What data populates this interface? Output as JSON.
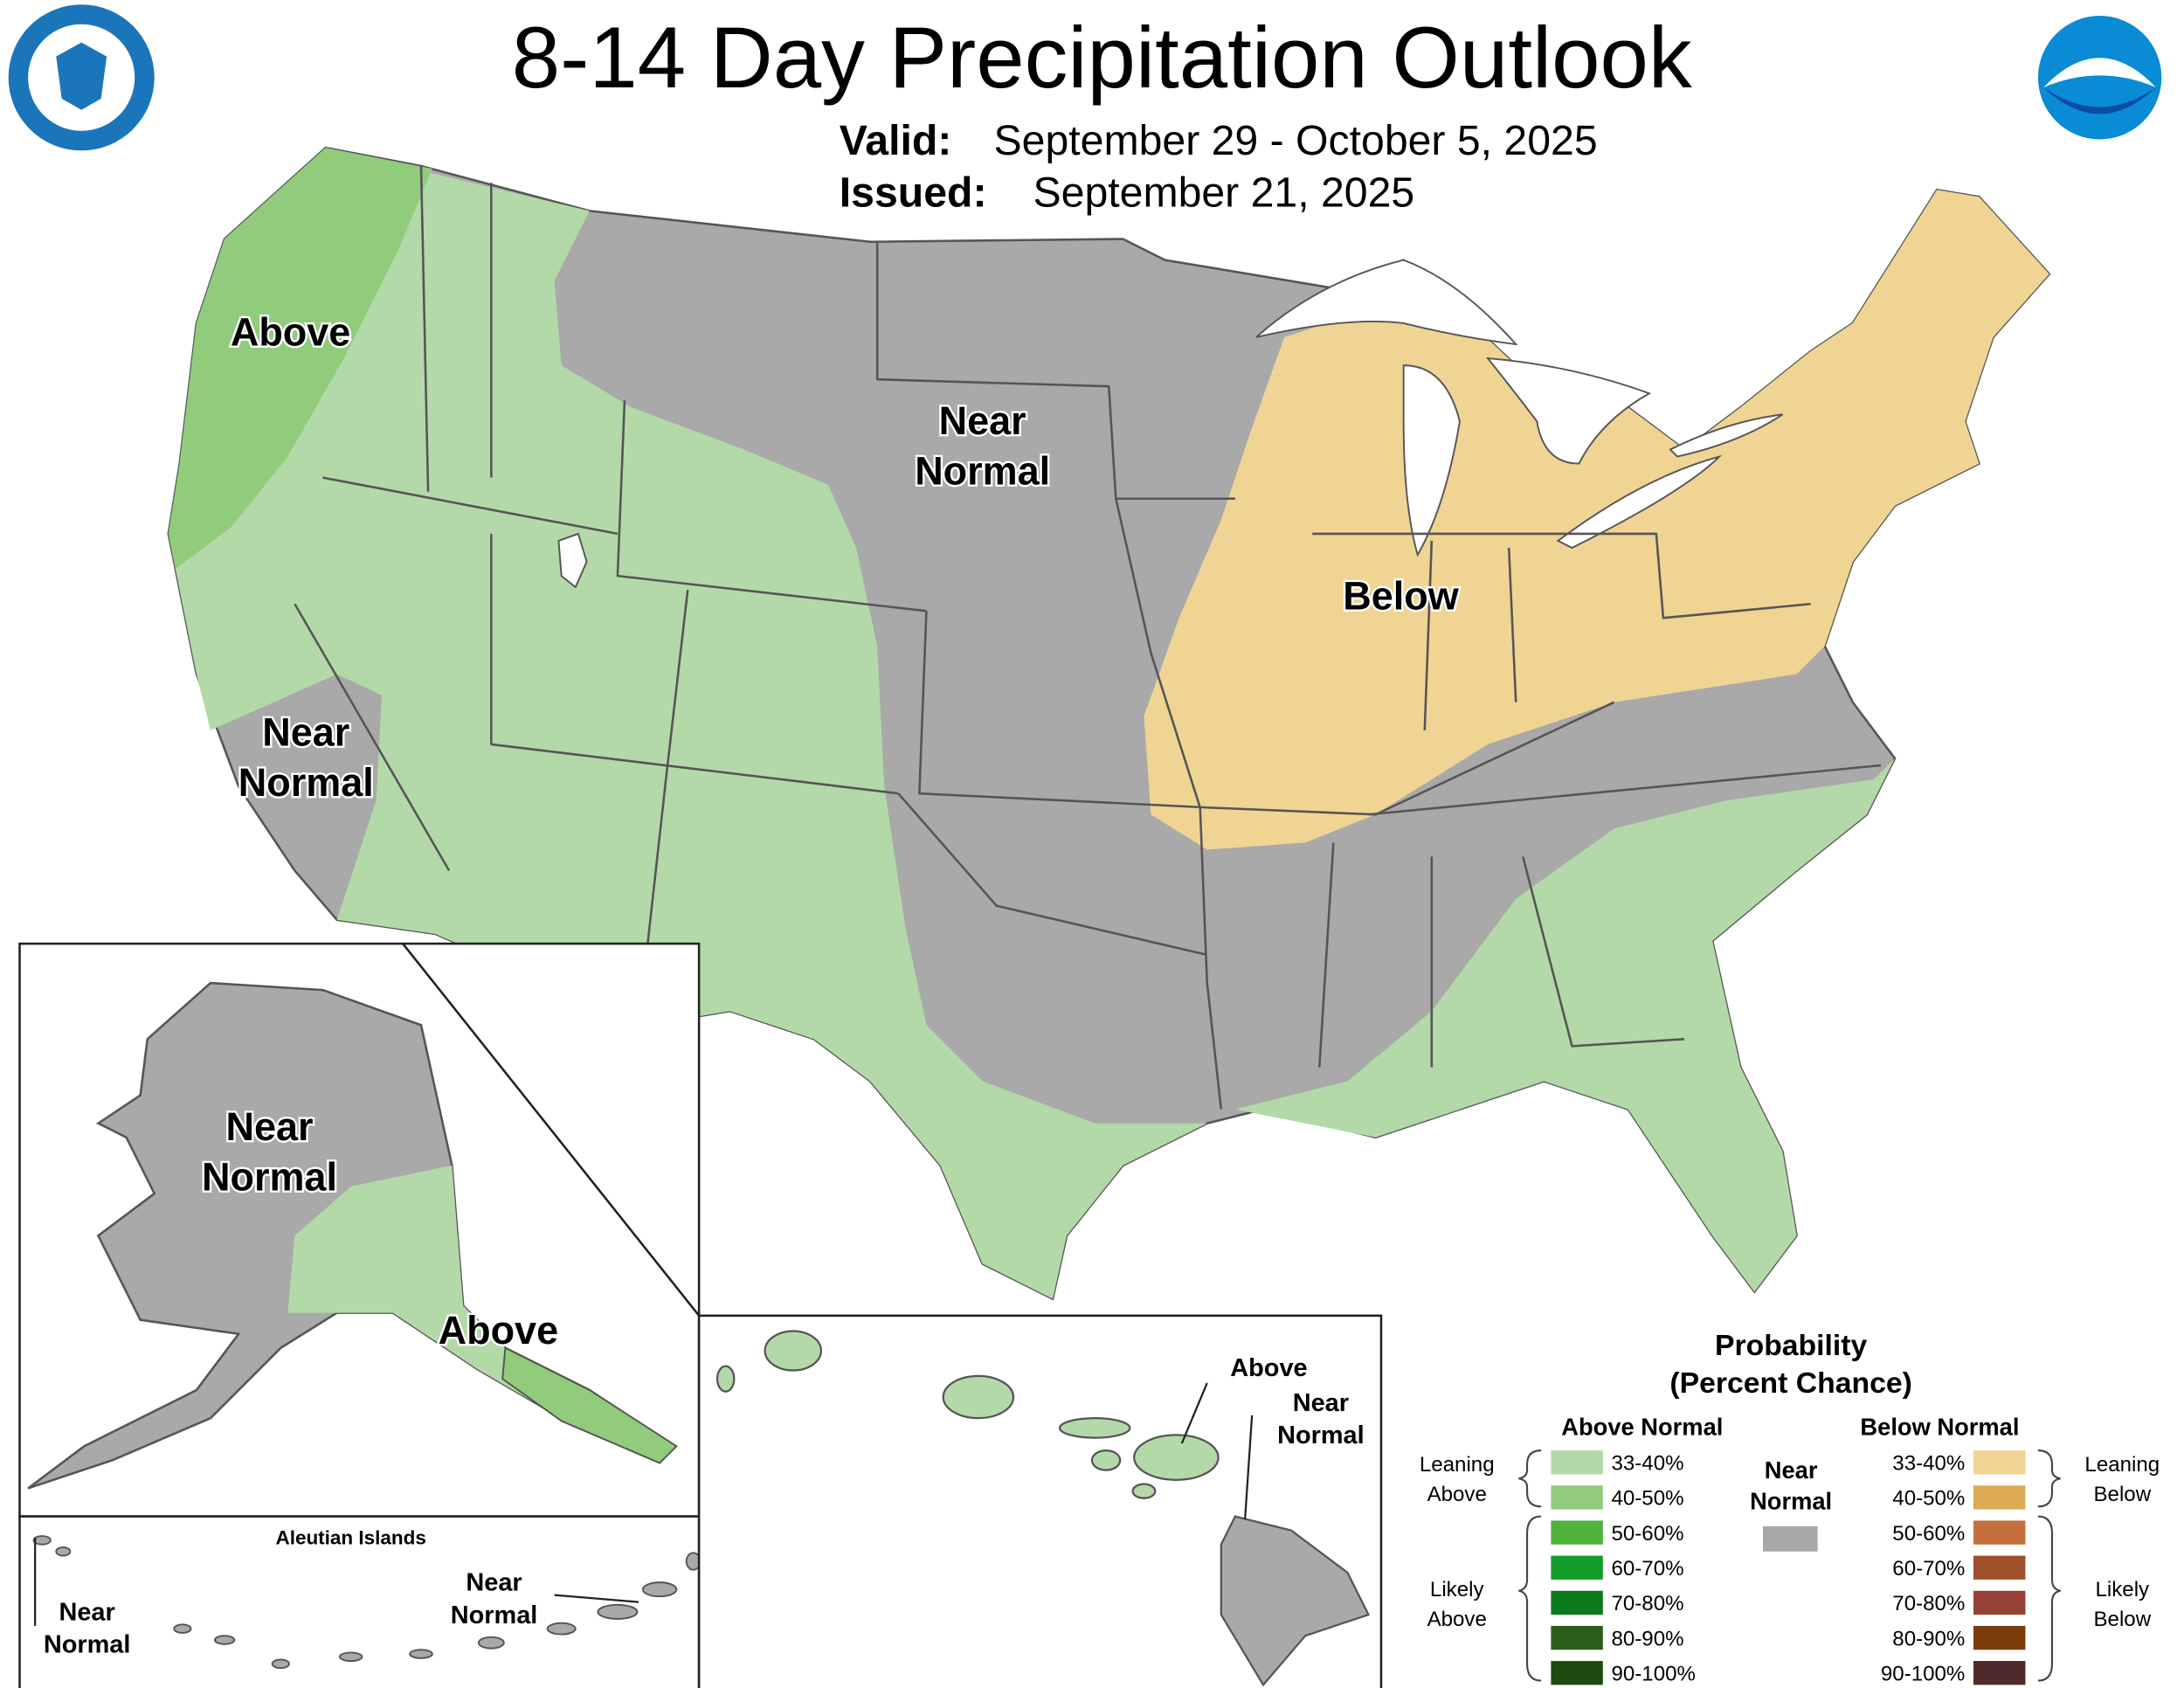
{
  "header": {
    "title": "8-14 Day Precipitation Outlook",
    "valid_label": "Valid:",
    "valid": "September 29 - October 5, 2025",
    "issued_label": "Issued:",
    "issued": "September 21, 2025"
  },
  "map_labels": [
    {
      "lines": [
        "Above"
      ]
    },
    {
      "lines": [
        "Near",
        "Normal"
      ]
    },
    {
      "lines": [
        "Below"
      ]
    },
    {
      "lines": [
        "Near",
        "Normal"
      ]
    },
    {
      "lines": [
        "Near",
        "Normal"
      ]
    },
    {
      "lines": [
        "Above"
      ]
    },
    {
      "lines": [
        "Above"
      ]
    },
    {
      "lines": [
        "Near",
        "Normal"
      ]
    },
    {
      "lines": [
        "Near",
        "Normal"
      ]
    },
    {
      "lines": [
        "Near",
        "Normal"
      ]
    }
  ],
  "aleutian_title": "Aleutian Islands",
  "legend": {
    "title": [
      "Probability",
      "(Percent Chance)"
    ],
    "above": {
      "header": "Above Normal",
      "items": [
        {
          "label": "33-40%",
          "color": "#b3d9a8"
        },
        {
          "label": "40-50%",
          "color": "#91cc7c"
        },
        {
          "label": "50-60%",
          "color": "#4db33d"
        },
        {
          "label": "60-70%",
          "color": "#139d29"
        },
        {
          "label": "70-80%",
          "color": "#0a7a1c"
        },
        {
          "label": "80-90%",
          "color": "#2c5e1a"
        },
        {
          "label": "90-100%",
          "color": "#1e4a0e"
        }
      ]
    },
    "below": {
      "header": "Below Normal",
      "items": [
        {
          "label": "33-40%",
          "color": "#f0d494"
        },
        {
          "label": "40-50%",
          "color": "#dcaa50"
        },
        {
          "label": "50-60%",
          "color": "#c4703c"
        },
        {
          "label": "60-70%",
          "color": "#a04f2a"
        },
        {
          "label": "70-80%",
          "color": "#964236"
        },
        {
          "label": "80-90%",
          "color": "#7a3c0a"
        },
        {
          "label": "90-100%",
          "color": "#4f2a2a"
        }
      ]
    },
    "near": {
      "lines": [
        "Near",
        "Normal"
      ],
      "color": "#a9a9a9"
    },
    "groups": [
      {
        "lines": [
          "Leaning",
          "Above"
        ]
      },
      {
        "lines": [
          "Likely",
          "Above"
        ]
      },
      {
        "lines": [
          "Leaning",
          "Below"
        ]
      },
      {
        "lines": [
          "Likely",
          "Below"
        ]
      }
    ]
  }
}
